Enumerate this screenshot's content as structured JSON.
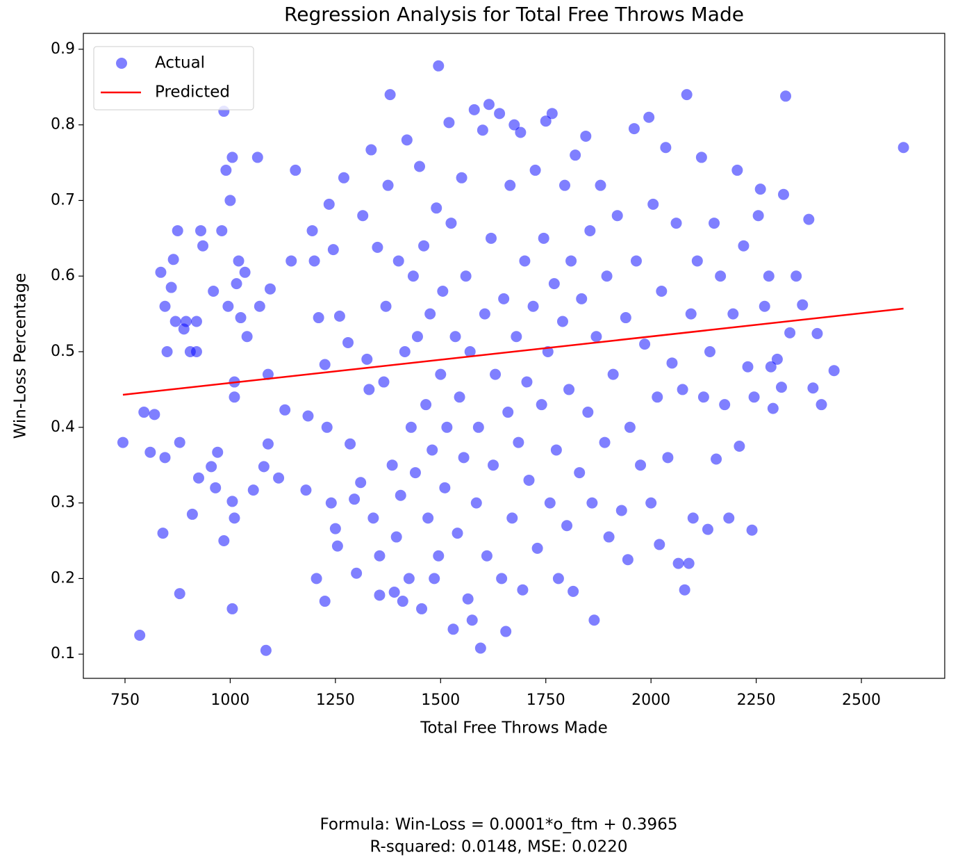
{
  "chart_data": {
    "type": "scatter",
    "title": "Regression Analysis for Total Free Throws Made",
    "xlabel": "Total Free Throws Made",
    "ylabel": "Win-Loss Percentage",
    "xlim": [
      651,
      2698
    ],
    "ylim": [
      0.068,
      0.921
    ],
    "xticks": [
      750,
      1000,
      1250,
      1500,
      1750,
      2000,
      2250,
      2500
    ],
    "yticks": [
      0.1,
      0.2,
      0.3,
      0.4,
      0.5,
      0.6,
      0.7,
      0.8,
      0.9
    ],
    "legend": "upper left",
    "annotations": [
      "Formula: Win-Loss = 0.0001*o_ftm + 0.3965",
      "R-squared: 0.0148, MSE: 0.0220"
    ],
    "series": [
      {
        "name": "Actual",
        "type": "scatter",
        "color": "#0000ff",
        "opacity": 0.5,
        "x": [
          745,
          785,
          795,
          810,
          820,
          835,
          840,
          845,
          845,
          850,
          860,
          865,
          870,
          875,
          880,
          880,
          890,
          895,
          905,
          910,
          920,
          920,
          925,
          930,
          935,
          955,
          960,
          965,
          970,
          980,
          985,
          985,
          990,
          995,
          1000,
          1005,
          1005,
          1010,
          1005,
          1010,
          1010,
          1015,
          1020,
          1025,
          1035,
          1040,
          1055,
          1065,
          1070,
          1080,
          1085,
          1090,
          1090,
          1095,
          1115,
          1130,
          1145,
          1155,
          1180,
          1185,
          1195,
          1200,
          1205,
          1210,
          1225,
          1225,
          1230,
          1235,
          1240,
          1245,
          1250,
          1255,
          1260,
          1270,
          1280,
          1285,
          1295,
          1300,
          1310,
          1315,
          1325,
          1330,
          1335,
          1340,
          1350,
          1355,
          1355,
          1365,
          1370,
          1375,
          1380,
          1385,
          1390,
          1395,
          1400,
          1405,
          1410,
          1415,
          1420,
          1425,
          1430,
          1435,
          1440,
          1445,
          1450,
          1455,
          1460,
          1465,
          1470,
          1475,
          1480,
          1485,
          1490,
          1495,
          1495,
          1500,
          1505,
          1510,
          1515,
          1520,
          1525,
          1530,
          1535,
          1540,
          1545,
          1550,
          1555,
          1560,
          1565,
          1570,
          1575,
          1580,
          1585,
          1590,
          1595,
          1600,
          1605,
          1610,
          1615,
          1620,
          1625,
          1630,
          1640,
          1645,
          1650,
          1655,
          1660,
          1665,
          1670,
          1675,
          1680,
          1685,
          1690,
          1695,
          1700,
          1705,
          1710,
          1720,
          1725,
          1730,
          1740,
          1745,
          1750,
          1755,
          1760,
          1765,
          1770,
          1775,
          1780,
          1790,
          1795,
          1800,
          1805,
          1810,
          1815,
          1820,
          1830,
          1835,
          1845,
          1850,
          1855,
          1860,
          1865,
          1870,
          1880,
          1890,
          1895,
          1900,
          1910,
          1920,
          1930,
          1940,
          1945,
          1950,
          1960,
          1965,
          1975,
          1985,
          1995,
          2000,
          2005,
          2015,
          2020,
          2025,
          2035,
          2040,
          2050,
          2060,
          2065,
          2075,
          2080,
          2085,
          2090,
          2095,
          2100,
          2110,
          2120,
          2125,
          2135,
          2140,
          2150,
          2155,
          2165,
          2175,
          2185,
          2195,
          2205,
          2210,
          2220,
          2230,
          2240,
          2245,
          2255,
          2260,
          2270,
          2280,
          2285,
          2290,
          2300,
          2310,
          2315,
          2320,
          2330,
          2345,
          2360,
          2375,
          2385,
          2395,
          2405,
          2435,
          2600
        ],
        "values": [
          0.38,
          0.125,
          0.42,
          0.367,
          0.417,
          0.605,
          0.26,
          0.36,
          0.56,
          0.5,
          0.585,
          0.622,
          0.54,
          0.66,
          0.38,
          0.18,
          0.53,
          0.54,
          0.5,
          0.285,
          0.5,
          0.54,
          0.333,
          0.66,
          0.64,
          0.348,
          0.58,
          0.32,
          0.367,
          0.66,
          0.818,
          0.25,
          0.74,
          0.56,
          0.7,
          0.757,
          0.302,
          0.28,
          0.16,
          0.46,
          0.44,
          0.59,
          0.62,
          0.545,
          0.605,
          0.52,
          0.317,
          0.757,
          0.56,
          0.348,
          0.105,
          0.47,
          0.378,
          0.583,
          0.333,
          0.423,
          0.62,
          0.74,
          0.317,
          0.415,
          0.66,
          0.62,
          0.2,
          0.545,
          0.17,
          0.483,
          0.4,
          0.695,
          0.3,
          0.635,
          0.266,
          0.243,
          0.547,
          0.73,
          0.512,
          0.378,
          0.305,
          0.207,
          0.327,
          0.68,
          0.49,
          0.45,
          0.767,
          0.28,
          0.638,
          0.23,
          0.178,
          0.46,
          0.56,
          0.72,
          0.84,
          0.35,
          0.182,
          0.255,
          0.62,
          0.31,
          0.17,
          0.5,
          0.78,
          0.2,
          0.4,
          0.6,
          0.34,
          0.52,
          0.745,
          0.16,
          0.64,
          0.43,
          0.28,
          0.55,
          0.37,
          0.2,
          0.69,
          0.878,
          0.23,
          0.47,
          0.58,
          0.32,
          0.4,
          0.803,
          0.67,
          0.133,
          0.52,
          0.26,
          0.44,
          0.73,
          0.36,
          0.6,
          0.173,
          0.5,
          0.145,
          0.82,
          0.3,
          0.4,
          0.108,
          0.793,
          0.55,
          0.23,
          0.827,
          0.65,
          0.35,
          0.47,
          0.815,
          0.2,
          0.57,
          0.13,
          0.42,
          0.72,
          0.28,
          0.8,
          0.52,
          0.38,
          0.79,
          0.185,
          0.62,
          0.46,
          0.33,
          0.56,
          0.74,
          0.24,
          0.43,
          0.65,
          0.805,
          0.5,
          0.3,
          0.815,
          0.59,
          0.37,
          0.2,
          0.54,
          0.72,
          0.27,
          0.45,
          0.62,
          0.183,
          0.76,
          0.34,
          0.57,
          0.785,
          0.42,
          0.66,
          0.3,
          0.145,
          0.52,
          0.72,
          0.38,
          0.6,
          0.255,
          0.47,
          0.68,
          0.29,
          0.545,
          0.225,
          0.4,
          0.795,
          0.62,
          0.35,
          0.51,
          0.81,
          0.3,
          0.695,
          0.44,
          0.245,
          0.58,
          0.77,
          0.36,
          0.485,
          0.67,
          0.22,
          0.45,
          0.185,
          0.84,
          0.22,
          0.55,
          0.28,
          0.62,
          0.757,
          0.44,
          0.265,
          0.5,
          0.67,
          0.358,
          0.6,
          0.43,
          0.28,
          0.55,
          0.74,
          0.375,
          0.64,
          0.48,
          0.264,
          0.44,
          0.68,
          0.715,
          0.56,
          0.6,
          0.48,
          0.425,
          0.49,
          0.453,
          0.708,
          0.838,
          0.525,
          0.6,
          0.562,
          0.675,
          0.452,
          0.524,
          0.43,
          0.475,
          0.77
        ]
      },
      {
        "name": "Predicted",
        "type": "line",
        "color": "#ff0000",
        "x": [
          745,
          2600
        ],
        "values": [
          0.443,
          0.557
        ]
      }
    ]
  }
}
